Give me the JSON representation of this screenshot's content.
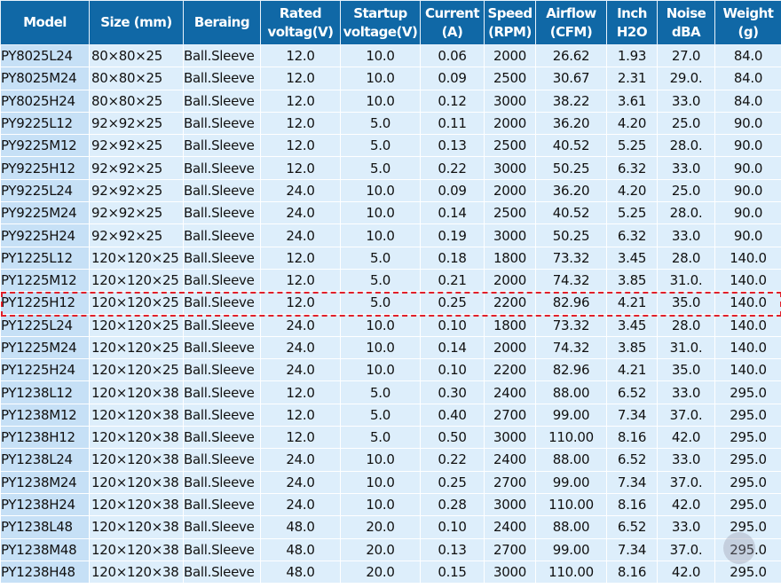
{
  "headers": [
    "Model",
    "Size (mm)",
    "Beraing",
    "Rated voltag(V)",
    "Startup voltage(V)",
    "Current (A)",
    "Speed (RPM)",
    "Airflow (CFM)",
    "Inch H2O",
    "Noise dBA",
    "Weight (g)"
  ],
  "selected_row": 11,
  "rows": [
    [
      "PY8025L24",
      "80×80×25",
      "Ball.Sleeve",
      "12.0",
      "10.0",
      "0.06",
      "2000",
      "26.62",
      "1.93",
      "27.0",
      "84.0"
    ],
    [
      "PY8025M24",
      "80×80×25",
      "Ball.Sleeve",
      "12.0",
      "10.0",
      "0.09",
      "2500",
      "30.67",
      "2.31",
      "29.0.",
      "84.0"
    ],
    [
      "PY8025H24",
      "80×80×25",
      "Ball.Sleeve",
      "12.0",
      "10.0",
      "0.12",
      "3000",
      "38.22",
      "3.61",
      "33.0",
      "84.0"
    ],
    [
      "PY9225L12",
      "92×92×25",
      "Ball.Sleeve",
      "12.0",
      "5.0",
      "0.11",
      "2000",
      "36.20",
      "4.20",
      "25.0",
      "90.0"
    ],
    [
      "PY9225M12",
      "92×92×25",
      "Ball.Sleeve",
      "12.0",
      "5.0",
      "0.13",
      "2500",
      "40.52",
      "5.25",
      "28.0.",
      "90.0"
    ],
    [
      "PY9225H12",
      "92×92×25",
      "Ball.Sleeve",
      "12.0",
      "5.0",
      "0.22",
      "3000",
      "50.25",
      "6.32",
      "33.0",
      "90.0"
    ],
    [
      "PY9225L24",
      "92×92×25",
      "Ball.Sleeve",
      "24.0",
      "10.0",
      "0.09",
      "2000",
      "36.20",
      "4.20",
      "25.0",
      "90.0"
    ],
    [
      "PY9225M24",
      "92×92×25",
      "Ball.Sleeve",
      "24.0",
      "10.0",
      "0.14",
      "2500",
      "40.52",
      "5.25",
      "28.0.",
      "90.0"
    ],
    [
      "PY9225H24",
      "92×92×25",
      "Ball.Sleeve",
      "24.0",
      "10.0",
      "0.19",
      "3000",
      "50.25",
      "6.32",
      "33.0",
      "90.0"
    ],
    [
      "PY1225L12",
      "120×120×25",
      "Ball.Sleeve",
      "12.0",
      "5.0",
      "0.18",
      "1800",
      "73.32",
      "3.45",
      "28.0",
      "140.0"
    ],
    [
      "PY1225M12",
      "120×120×25",
      "Ball.Sleeve",
      "12.0",
      "5.0",
      "0.21",
      "2000",
      "74.32",
      "3.85",
      "31.0.",
      "140.0"
    ],
    [
      "PY1225H12",
      "120×120×25",
      "Ball.Sleeve",
      "12.0",
      "5.0",
      "0.25",
      "2200",
      "82.96",
      "4.21",
      "35.0",
      "140.0"
    ],
    [
      "PY1225L24",
      "120×120×25",
      "Ball.Sleeve",
      "24.0",
      "10.0",
      "0.10",
      "1800",
      "73.32",
      "3.45",
      "28.0",
      "140.0"
    ],
    [
      "PY1225M24",
      "120×120×25",
      "Ball.Sleeve",
      "24.0",
      "10.0",
      "0.14",
      "2000",
      "74.32",
      "3.85",
      "31.0.",
      "140.0"
    ],
    [
      "PY1225H24",
      "120×120×25",
      "Ball.Sleeve",
      "24.0",
      "10.0",
      "0.10",
      "2200",
      "82.96",
      "4.21",
      "35.0",
      "140.0"
    ],
    [
      "PY1238L12",
      "120×120×38",
      "Ball.Sleeve",
      "12.0",
      "5.0",
      "0.30",
      "2400",
      "88.00",
      "6.52",
      "33.0",
      "295.0"
    ],
    [
      "PY1238M12",
      "120×120×38",
      "Ball.Sleeve",
      "12.0",
      "5.0",
      "0.40",
      "2700",
      "99.00",
      "7.34",
      "37.0.",
      "295.0"
    ],
    [
      "PY1238H12",
      "120×120×38",
      "Ball.Sleeve",
      "12.0",
      "5.0",
      "0.50",
      "3000",
      "110.00",
      "8.16",
      "42.0",
      "295.0"
    ],
    [
      "PY1238L24",
      "120×120×38",
      "Ball.Sleeve",
      "24.0",
      "10.0",
      "0.22",
      "2400",
      "88.00",
      "6.52",
      "33.0",
      "295.0"
    ],
    [
      "PY1238M24",
      "120×120×38",
      "Ball.Sleeve",
      "24.0",
      "10.0",
      "0.25",
      "2700",
      "99.00",
      "7.34",
      "37.0.",
      "295.0"
    ],
    [
      "PY1238H24",
      "120×120×38",
      "Ball.Sleeve",
      "24.0",
      "10.0",
      "0.28",
      "3000",
      "110.00",
      "8.16",
      "42.0",
      "295.0"
    ],
    [
      "PY1238L48",
      "120×120×38",
      "Ball.Sleeve",
      "48.0",
      "20.0",
      "0.10",
      "2400",
      "88.00",
      "6.52",
      "33.0",
      "295.0"
    ],
    [
      "PY1238M48",
      "120×120×38",
      "Ball.Sleeve",
      "48.0",
      "20.0",
      "0.13",
      "2700",
      "99.00",
      "7.34",
      "37.0.",
      "295.0"
    ],
    [
      "PY1238H48",
      "120×120×38",
      "Ball.Sleeve",
      "48.0",
      "20.0",
      "0.15",
      "3000",
      "110.00",
      "8.16",
      "42.0",
      "295.0"
    ]
  ]
}
